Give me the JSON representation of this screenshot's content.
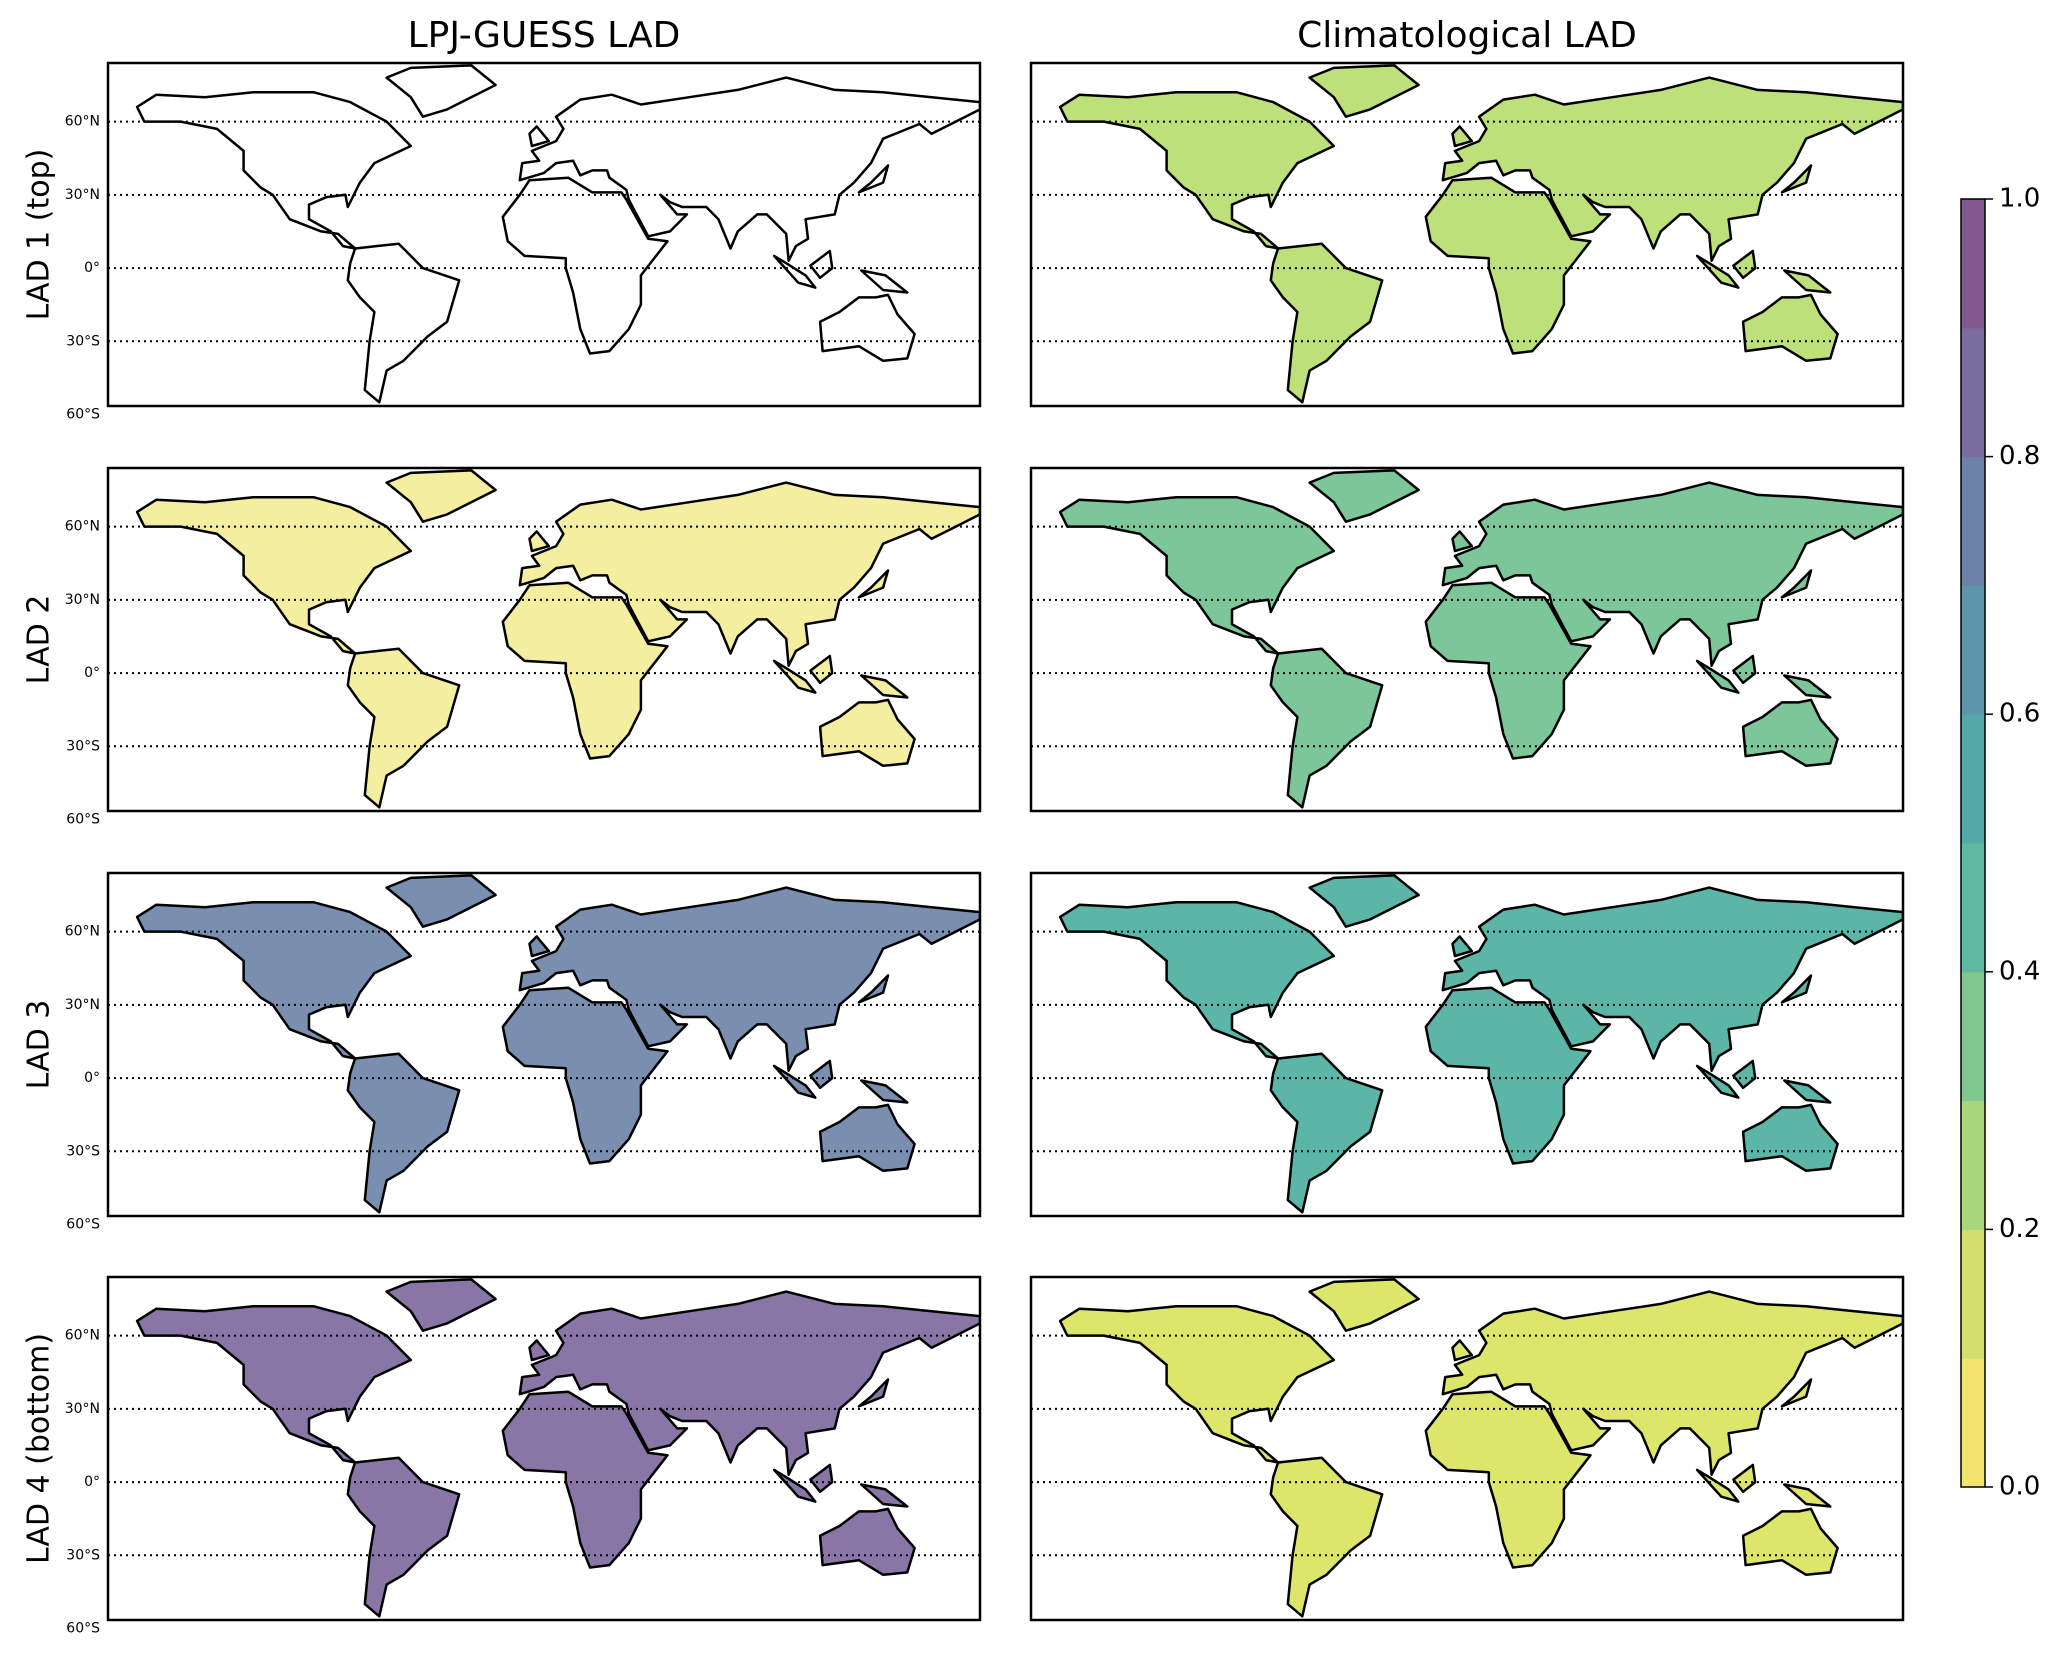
{
  "columns": [
    "LPJ-GUESS LAD",
    "Climatological LAD"
  ],
  "rows": [
    "LAD 1 (top)",
    "LAD 2",
    "LAD 3",
    "LAD 4 (bottom)"
  ],
  "map": {
    "lat_lim": [
      -56.5,
      84
    ],
    "lat_ticks": [
      {
        "value": 60,
        "label": "60°N"
      },
      {
        "value": 30,
        "label": "30°N"
      },
      {
        "value": 0,
        "label": "0°"
      },
      {
        "value": -30,
        "label": "30°S"
      },
      {
        "value": -60,
        "label": "60°S"
      }
    ]
  },
  "colorbar": {
    "lim": [
      0,
      1
    ],
    "ticks": [
      {
        "value": 0,
        "label": "0.0"
      },
      0.2,
      0.4,
      0.6,
      0.8,
      {
        "value": 1,
        "label": "1.0"
      }
    ],
    "colors": [
      "#f1e46f",
      "#d3df6c",
      "#a9d57c",
      "#7fc88e",
      "#5fb8a0",
      "#55a8a8",
      "#5d95ab",
      "#6d82a8",
      "#7a6ea0",
      "#82598e"
    ]
  }
}
